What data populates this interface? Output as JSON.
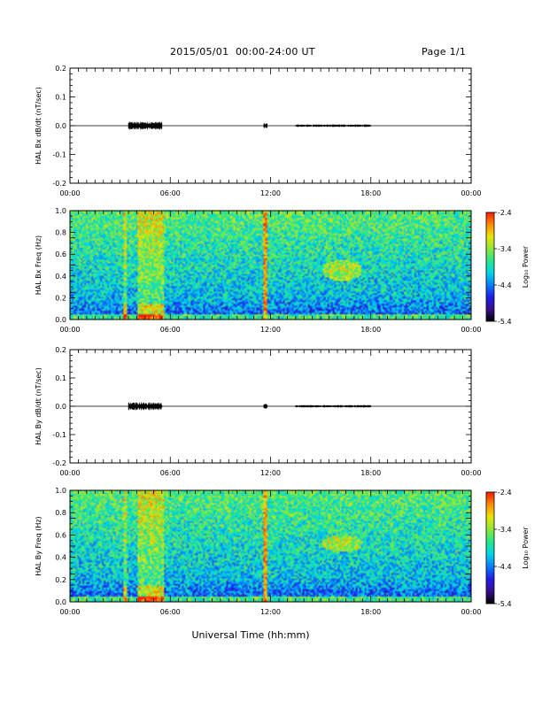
{
  "header": {
    "title": "2015/05/01  00:00-24:00 UT",
    "page": "Page 1/1"
  },
  "xaxis": {
    "label": "Universal Time (hh:mm)",
    "tick_labels": [
      "00:00",
      "06:00",
      "12:00",
      "18:00",
      "00:00"
    ],
    "range_hours": [
      0,
      24
    ]
  },
  "colorbar": {
    "label": "Log₁₀ Power",
    "tick_labels": [
      "-2.4",
      "-3.4",
      "-4.4",
      "-5.4"
    ],
    "range": [
      -5.4,
      -2.4
    ],
    "colormap": [
      "#000000",
      "#3a0f8f",
      "#1e1ee6",
      "#0a7cff",
      "#00d6e6",
      "#27e88a",
      "#8fe63a",
      "#e6e60a",
      "#ff8c00",
      "#ff1a00"
    ]
  },
  "chart_data": [
    {
      "type": "line",
      "ylabel": "HAL Bx dB/dt (nT/sec)",
      "ylim": [
        -0.2,
        0.2
      ],
      "ytick_labels": [
        "0.2",
        "0.1",
        "0.0",
        "-0.1",
        "-0.2"
      ],
      "yticks": [
        0.2,
        0.1,
        0.0,
        -0.1,
        -0.2
      ],
      "baseline": 0.0,
      "activity_bursts_hours": [
        [
          3.5,
          5.5
        ],
        [
          11.6,
          11.8
        ],
        [
          13.5,
          18.0
        ]
      ]
    },
    {
      "type": "heatmap",
      "ylabel": "HAL Bx Freq (Hz)",
      "ylim": [
        0.0,
        1.0
      ],
      "ytick_labels": [
        "1.0",
        "0.8",
        "0.6",
        "0.4",
        "0.2",
        "0.0"
      ],
      "yticks": [
        1.0,
        0.8,
        0.6,
        0.4,
        0.2,
        0.0
      ],
      "features": [
        {
          "kind": "broadband",
          "hours": [
            3.2,
            3.4
          ]
        },
        {
          "kind": "broadband",
          "hours": [
            4.0,
            5.6
          ]
        },
        {
          "kind": "spike",
          "hours": [
            11.55,
            11.75
          ]
        },
        {
          "kind": "patch",
          "center_hours": 16.3,
          "freq": [
            0.35,
            0.55
          ]
        }
      ]
    },
    {
      "type": "line",
      "ylabel": "HAL By dB/dt (nT/sec)",
      "ylim": [
        -0.2,
        0.2
      ],
      "ytick_labels": [
        "0.2",
        "0.1",
        "0.0",
        "-0.1",
        "-0.2"
      ],
      "yticks": [
        0.2,
        0.1,
        0.0,
        -0.1,
        -0.2
      ],
      "baseline": 0.0,
      "activity_bursts_hours": [
        [
          3.5,
          5.5
        ],
        [
          11.6,
          11.8
        ],
        [
          13.5,
          18.0
        ]
      ]
    },
    {
      "type": "heatmap",
      "ylabel": "HAL By Freq (Hz)",
      "ylim": [
        0.0,
        1.0
      ],
      "ytick_labels": [
        "1.0",
        "0.8",
        "0.6",
        "0.4",
        "0.2",
        "0.0"
      ],
      "yticks": [
        1.0,
        0.8,
        0.6,
        0.4,
        0.2,
        0.0
      ],
      "features": [
        {
          "kind": "broadband",
          "hours": [
            3.2,
            3.4
          ]
        },
        {
          "kind": "broadband",
          "hours": [
            4.0,
            5.6
          ]
        },
        {
          "kind": "spike",
          "hours": [
            11.55,
            11.75
          ]
        },
        {
          "kind": "patch",
          "center_hours": 16.3,
          "freq": [
            0.45,
            0.6
          ]
        }
      ]
    }
  ]
}
